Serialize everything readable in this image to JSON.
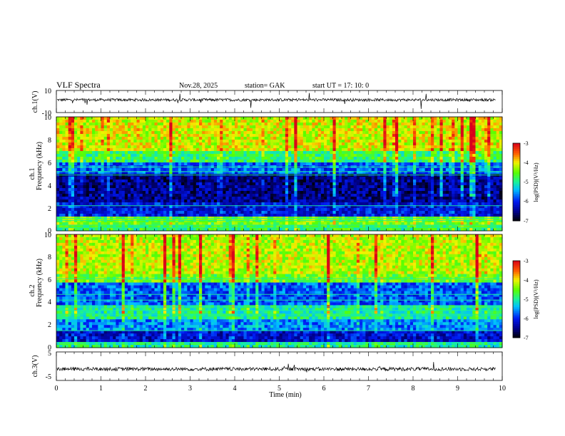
{
  "header": {
    "title": "VLF  Spectra",
    "date": "Nov.28, 2025",
    "station": "station= GAK",
    "start_ut": "start  UT  =    17: 10: 0"
  },
  "chart_data": [
    {
      "id": "ch1-waveform",
      "type": "line",
      "ylabel": "ch.1(V)",
      "ylim": [
        -10,
        10
      ],
      "y_tick_labels": [
        "10",
        "-10"
      ],
      "x_unit": "min",
      "xlim": [
        0,
        10
      ],
      "data_extent_min": 9.85,
      "baseline_v": 1.5,
      "color": "#000000"
    },
    {
      "id": "ch1-spectrogram",
      "type": "heatmap",
      "ylabel_line1": "ch.1",
      "ylabel_line2": "Frequency  (kHz)",
      "ylim": [
        0,
        10
      ],
      "y_tick_labels": [
        "0",
        "2",
        "4",
        "6",
        "8",
        "10"
      ],
      "xlim": [
        0,
        10
      ],
      "colorbar": {
        "label": "log(PSD)(V²/Hz)",
        "range": [
          -7,
          -3
        ],
        "tick_labels": [
          "-3",
          "-4",
          "-5",
          "-6",
          "-7"
        ]
      },
      "bands": [
        {
          "from": 0.0,
          "to": 0.6,
          "level": 0.55
        },
        {
          "from": 0.6,
          "to": 1.2,
          "level": 0.62
        },
        {
          "from": 1.2,
          "to": 2.4,
          "level": 0.22
        },
        {
          "from": 2.4,
          "to": 5.0,
          "level": 0.12
        },
        {
          "from": 5.0,
          "to": 6.0,
          "level": 0.3
        },
        {
          "from": 6.0,
          "to": 7.0,
          "level": 0.55
        },
        {
          "from": 7.0,
          "to": 10.0,
          "level": 0.72
        }
      ],
      "lines_khz": [
        0.3,
        0.5,
        0.9,
        1.1,
        2.2,
        4.9,
        5.2,
        5.6
      ]
    },
    {
      "id": "ch2-spectrogram",
      "type": "heatmap",
      "ylabel_line1": "ch.2",
      "ylabel_line2": "Frequency  (kHz)",
      "ylim": [
        0,
        10
      ],
      "y_tick_labels": [
        "0",
        "2",
        "4",
        "6",
        "8",
        "10"
      ],
      "xlim": [
        0,
        10
      ],
      "colorbar": {
        "label": "log(PSD)(V²/Hz)",
        "range": [
          -7,
          -3
        ],
        "tick_labels": [
          "-3",
          "-4",
          "-5",
          "-6",
          "-7"
        ]
      },
      "bands": [
        {
          "from": 0.0,
          "to": 0.6,
          "level": 0.5
        },
        {
          "from": 0.6,
          "to": 1.6,
          "level": 0.2
        },
        {
          "from": 1.6,
          "to": 2.6,
          "level": 0.35
        },
        {
          "from": 2.6,
          "to": 3.8,
          "level": 0.5
        },
        {
          "from": 3.8,
          "to": 5.8,
          "level": 0.3
        },
        {
          "from": 5.8,
          "to": 6.4,
          "level": 0.62
        },
        {
          "from": 6.4,
          "to": 10.0,
          "level": 0.7
        }
      ],
      "lines_khz": [
        0.4,
        1.5,
        2.9,
        3.3,
        3.6,
        4.2,
        4.7,
        6.1
      ]
    },
    {
      "id": "ch3-waveform",
      "type": "line",
      "ylabel": "ch.3(V)",
      "ylim": [
        -5,
        5
      ],
      "y_tick_labels": [
        "5",
        "-5"
      ],
      "xlim": [
        0,
        10
      ],
      "data_extent_min": 9.85,
      "baseline_v": -1.0,
      "color": "#000000"
    }
  ],
  "x_axis": {
    "label": "Time  (min)",
    "tick_labels": [
      "0",
      "1",
      "2",
      "3",
      "4",
      "5",
      "6",
      "7",
      "8",
      "9",
      "10"
    ]
  }
}
